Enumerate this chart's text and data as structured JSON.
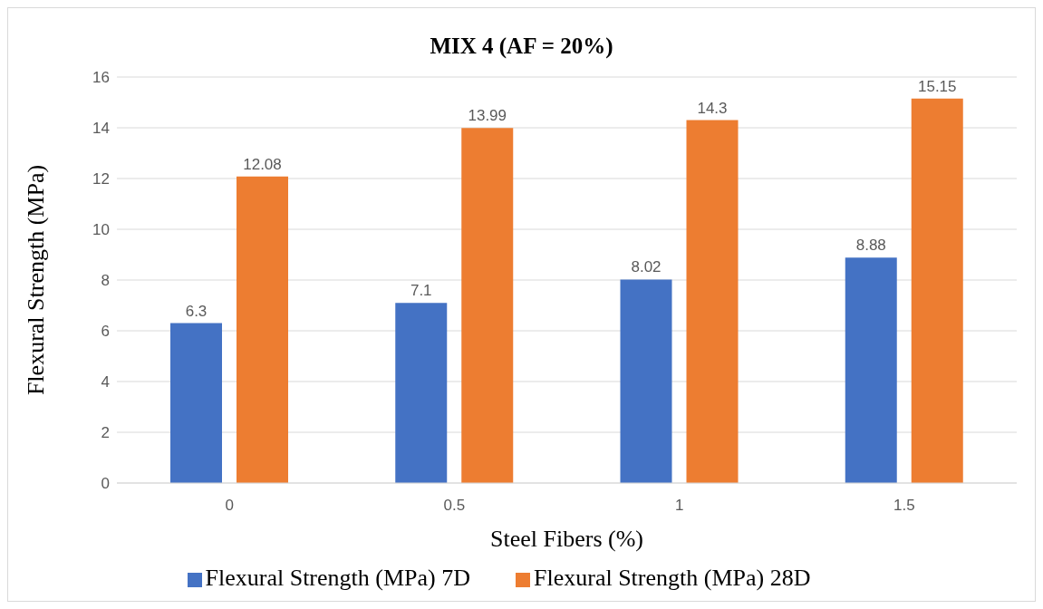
{
  "chart_data": {
    "type": "bar",
    "title": "MIX 4 (AF = 20%)",
    "xlabel": "Steel Fibers (%)",
    "ylabel": "Flexural Strength (MPa)",
    "categories": [
      "0",
      "0.5",
      "1",
      "1.5"
    ],
    "series": [
      {
        "name": "Flexural Strength (MPa) 7D",
        "color": "#4472c4",
        "values": [
          6.3,
          7.1,
          8.02,
          8.88
        ]
      },
      {
        "name": "Flexural Strength (MPa) 28D",
        "color": "#ed7d31",
        "values": [
          12.08,
          13.99,
          14.3,
          15.15
        ]
      }
    ],
    "ylim": [
      0,
      16
    ],
    "yticks": [
      0,
      2,
      4,
      6,
      8,
      10,
      12,
      14,
      16
    ],
    "grid": "y",
    "legend": "bottom",
    "data_labels": true
  }
}
